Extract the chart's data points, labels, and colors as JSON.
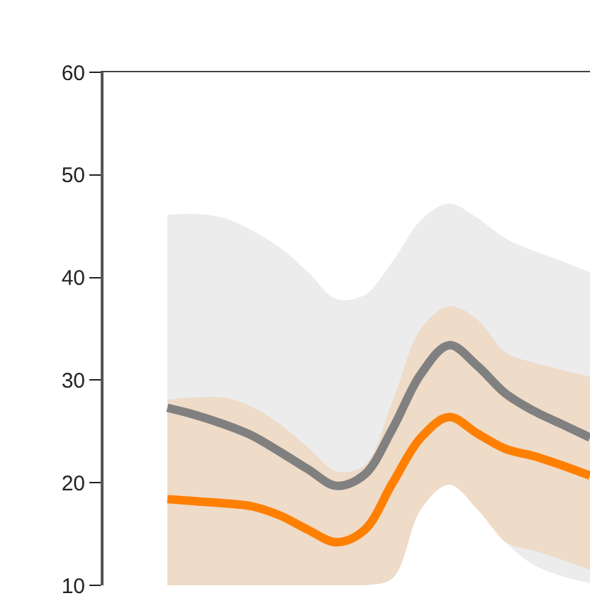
{
  "chart_data": {
    "type": "line",
    "categories": [
      null,
      null,
      null,
      null,
      null,
      null,
      null,
      null,
      null,
      null,
      null,
      null,
      null,
      null,
      null,
      null
    ],
    "ylim": [
      10,
      60
    ],
    "yticks": [
      10,
      20,
      30,
      40,
      50,
      60
    ],
    "grid": false,
    "marker": "none",
    "line_style": "solid",
    "series": [
      {
        "color": "#808080",
        "values": [
          27.3,
          26.6,
          25.7,
          24.6,
          23.0,
          21.3,
          19.7,
          20.8,
          25.3,
          30.6,
          33.4,
          31.4,
          28.7,
          27.0,
          25.7,
          24.4
        ],
        "lower": [
          10,
          10,
          10,
          10,
          10,
          10,
          10,
          10,
          10.7,
          17.4,
          19.8,
          17.4,
          14.2,
          12.0,
          10.9,
          10.2
        ],
        "upper": [
          46.1,
          46.2,
          45.8,
          44.6,
          42.9,
          40.5,
          37.9,
          38.3,
          41.6,
          45.6,
          47.2,
          45.8,
          43.8,
          42.6,
          41.6,
          40.5
        ]
      },
      {
        "color": "#ff7f00",
        "values": [
          18.4,
          18.2,
          18.0,
          17.7,
          16.8,
          15.4,
          14.2,
          15.4,
          20.0,
          24.4,
          26.4,
          24.8,
          23.3,
          22.6,
          21.7,
          20.7
        ],
        "lower": [
          10,
          10,
          10,
          10,
          10,
          10,
          10,
          10,
          10.7,
          17.4,
          19.8,
          17.4,
          14.2,
          13.4,
          12.5,
          11.5
        ],
        "upper": [
          28.1,
          28.3,
          28.3,
          27.4,
          25.7,
          23.4,
          21.1,
          21.7,
          28.0,
          35.0,
          37.2,
          35.9,
          32.7,
          31.7,
          31.0,
          30.3
        ]
      }
    ]
  }
}
